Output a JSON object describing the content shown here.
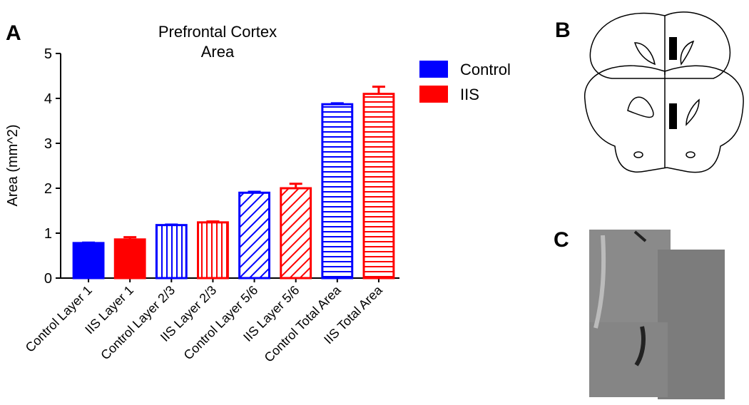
{
  "chart_data": {
    "type": "bar",
    "title": [
      "Prefrontal Cortex",
      "Area"
    ],
    "y_label": "Area (mm^2)",
    "categories": [
      "Control Layer 1",
      "IIS Layer 1",
      "Control Layer 2/3",
      "IIS Layer 2/3",
      "Control Layer 5/6",
      "IIS Layer 5/6",
      "Control Total Area",
      "IIS Total Area"
    ],
    "fill_patterns": [
      "solid",
      "solid",
      "vertical",
      "vertical",
      "diagonal",
      "diagonal",
      "horizontal",
      "horizontal"
    ],
    "series": [
      {
        "name": "Control",
        "color": "#0000ff",
        "values": [
          0.78,
          null,
          1.18,
          null,
          1.9,
          null,
          3.87,
          null
        ],
        "errors": [
          0.01,
          null,
          0.01,
          null,
          0.02,
          null,
          0.02,
          null
        ]
      },
      {
        "name": "IIS",
        "color": "#ff0000",
        "values": [
          null,
          0.86,
          null,
          1.24,
          null,
          2.0,
          null,
          4.1
        ],
        "errors": [
          null,
          0.05,
          null,
          0.02,
          null,
          0.1,
          null,
          0.16
        ]
      }
    ],
    "ylim": [
      0,
      5
    ],
    "yticks": [
      0,
      1,
      2,
      3,
      4,
      5
    ],
    "legend": "right"
  },
  "panel_labels": [
    "A",
    "B",
    "C"
  ]
}
